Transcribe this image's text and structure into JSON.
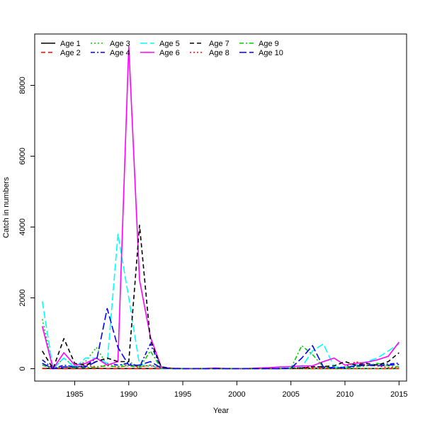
{
  "chart_data": {
    "type": "line",
    "title": "",
    "xlabel": "Year",
    "ylabel": "Catch in numbers",
    "xlim": [
      1981.3,
      2015.7
    ],
    "ylim": [
      -350,
      9450
    ],
    "xticks": [
      1985,
      1990,
      1995,
      2000,
      2005,
      2010,
      2015
    ],
    "yticks": [
      0,
      2000,
      4000,
      6000,
      8000
    ],
    "legend_position": "top-left",
    "grid": false,
    "x": [
      1982,
      1983,
      1984,
      1985,
      1986,
      1987,
      1988,
      1989,
      1990,
      1991,
      1992,
      1993,
      1994,
      1995,
      1996,
      1997,
      1998,
      1999,
      2000,
      2001,
      2002,
      2003,
      2004,
      2005,
      2006,
      2007,
      2008,
      2009,
      2010,
      2011,
      2012,
      2013,
      2014,
      2015
    ],
    "series": [
      {
        "name": "Age 1",
        "color": "#000000",
        "dash": "solid",
        "values": [
          10,
          5,
          5,
          5,
          5,
          10,
          5,
          5,
          5,
          5,
          5,
          5,
          5,
          5,
          5,
          5,
          5,
          5,
          5,
          5,
          5,
          5,
          5,
          5,
          5,
          5,
          5,
          5,
          5,
          5,
          5,
          5,
          5,
          5
        ]
      },
      {
        "name": "Age 2",
        "color": "#ff0000",
        "dash": "dashed",
        "values": [
          5,
          5,
          5,
          5,
          5,
          5,
          5,
          5,
          5,
          5,
          5,
          5,
          5,
          5,
          5,
          5,
          5,
          5,
          5,
          5,
          5,
          5,
          5,
          5,
          5,
          5,
          5,
          5,
          5,
          5,
          5,
          5,
          5,
          5
        ]
      },
      {
        "name": "Age 3",
        "color": "#00cd00",
        "dash": "dotted",
        "values": [
          1400,
          0,
          300,
          50,
          200,
          600,
          100,
          50,
          200,
          50,
          80,
          10,
          5,
          5,
          5,
          5,
          5,
          5,
          5,
          5,
          5,
          5,
          5,
          5,
          5,
          5,
          5,
          5,
          5,
          5,
          5,
          5,
          5,
          5
        ]
      },
      {
        "name": "Age 4",
        "color": "#0000ff",
        "dash": "dashdot",
        "values": [
          250,
          0,
          100,
          50,
          80,
          300,
          150,
          100,
          150,
          50,
          700,
          20,
          5,
          5,
          5,
          5,
          5,
          5,
          5,
          5,
          5,
          5,
          10,
          20,
          30,
          60,
          40,
          30,
          50,
          80,
          100,
          120,
          130,
          160
        ]
      },
      {
        "name": "Age 5",
        "color": "#00ffff",
        "dash": "longdash",
        "values": [
          1900,
          0,
          300,
          30,
          300,
          300,
          150,
          3800,
          2000,
          100,
          100,
          10,
          5,
          5,
          5,
          5,
          5,
          5,
          5,
          5,
          5,
          5,
          10,
          20,
          50,
          500,
          700,
          50,
          50,
          100,
          200,
          300,
          500,
          700
        ]
      },
      {
        "name": "Age 6",
        "color": "#ff00ff",
        "dash": "solid",
        "values": [
          1200,
          0,
          450,
          100,
          150,
          300,
          100,
          200,
          9100,
          2500,
          900,
          50,
          10,
          5,
          5,
          5,
          20,
          5,
          5,
          5,
          20,
          30,
          50,
          60,
          80,
          80,
          200,
          300,
          100,
          150,
          180,
          250,
          350,
          750
        ]
      },
      {
        "name": "Age 7",
        "color": "#000000",
        "dash": "dashed",
        "values": [
          500,
          0,
          850,
          150,
          100,
          200,
          300,
          200,
          200,
          4050,
          800,
          50,
          10,
          5,
          5,
          5,
          5,
          5,
          5,
          5,
          5,
          5,
          5,
          10,
          20,
          50,
          60,
          80,
          200,
          100,
          150,
          100,
          200,
          450
        ]
      },
      {
        "name": "Age 8",
        "color": "#ff0000",
        "dash": "dotted",
        "values": [
          150,
          0,
          50,
          20,
          100,
          50,
          100,
          50,
          100,
          50,
          100,
          20,
          10,
          5,
          5,
          5,
          5,
          5,
          5,
          5,
          5,
          5,
          5,
          10,
          20,
          30,
          20,
          10,
          50,
          200,
          100,
          80,
          30,
          40
        ]
      },
      {
        "name": "Age 9",
        "color": "#00cd00",
        "dash": "dashdot",
        "values": [
          100,
          0,
          50,
          20,
          30,
          50,
          80,
          50,
          80,
          30,
          500,
          10,
          5,
          5,
          5,
          5,
          5,
          5,
          5,
          5,
          5,
          5,
          5,
          10,
          650,
          400,
          50,
          20,
          20,
          50,
          80,
          150,
          80,
          50
        ]
      },
      {
        "name": "Age 10",
        "color": "#0000ff",
        "dash": "longdash",
        "values": [
          150,
          0,
          50,
          50,
          50,
          200,
          1700,
          600,
          100,
          100,
          200,
          20,
          5,
          5,
          5,
          5,
          5,
          5,
          5,
          5,
          5,
          5,
          5,
          10,
          300,
          650,
          50,
          20,
          30,
          80,
          100,
          80,
          100,
          120
        ]
      }
    ]
  }
}
